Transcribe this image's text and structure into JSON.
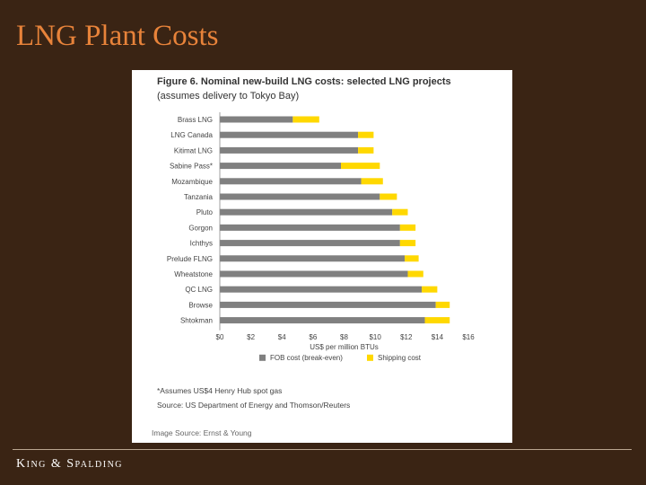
{
  "slide": {
    "title": "LNG Plant Costs",
    "footer_logo": "King & Spalding"
  },
  "figure": {
    "title": "Figure 6. Nominal new-build LNG costs: selected LNG projects",
    "subtitle": "(assumes delivery to Tokyo Bay)",
    "footnote": "*Assumes US$4 Henry Hub spot gas",
    "source": "Source: US Department of Energy and Thomson/Reuters",
    "image_source": "Image Source: Ernst & Young"
  },
  "chart_data": {
    "type": "bar",
    "orientation": "horizontal",
    "stacked": true,
    "categories": [
      "Brass LNG",
      "LNG Canada",
      "Kitimat LNG",
      "Sabine Pass*",
      "Mozambique",
      "Tanzania",
      "Pluto",
      "Gorgon",
      "Ichthys",
      "Prelude FLNG",
      "Wheatstone",
      "QC LNG",
      "Browse",
      "Shtokman"
    ],
    "series": [
      {
        "name": "FOB cost (break-even)",
        "color": "#808080",
        "values": [
          4.7,
          8.9,
          8.9,
          7.8,
          9.1,
          10.3,
          11.1,
          11.6,
          11.6,
          11.9,
          12.1,
          13.0,
          13.9,
          13.2
        ]
      },
      {
        "name": "Shipping cost",
        "color": "#ffd800",
        "values": [
          1.7,
          1.0,
          1.0,
          2.5,
          1.4,
          1.1,
          1.0,
          1.0,
          1.0,
          0.9,
          1.0,
          1.0,
          0.9,
          1.6
        ]
      }
    ],
    "x_ticks": [
      "$0",
      "$2",
      "$4",
      "$6",
      "$8",
      "$10",
      "$12",
      "$14",
      "$16"
    ],
    "xlim": [
      0,
      16
    ],
    "xlabel": "US$ per million BTUs",
    "legend_position": "bottom",
    "grid": false
  }
}
